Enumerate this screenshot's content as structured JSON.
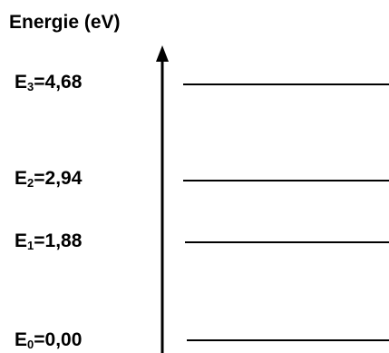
{
  "diagram": {
    "axis_title": "Energie (eV)",
    "levels": [
      {
        "symbol": "E",
        "subscript": "3",
        "equals": "=",
        "value": "4,68"
      },
      {
        "symbol": "E",
        "subscript": "2",
        "equals": "=",
        "value": "2,94"
      },
      {
        "symbol": "E",
        "subscript": "1",
        "equals": "=",
        "value": "1,88"
      },
      {
        "symbol": "E",
        "subscript": "0",
        "equals": "=",
        "value": "0,00"
      }
    ]
  }
}
